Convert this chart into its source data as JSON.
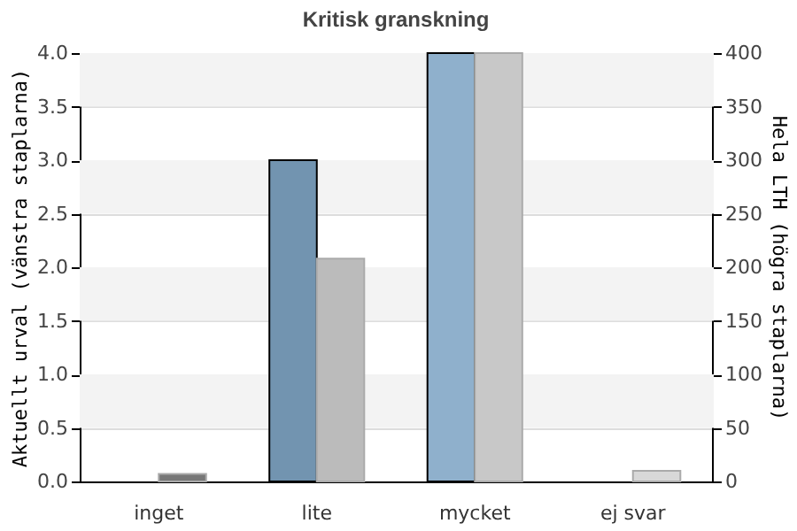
{
  "chart_data": {
    "type": "bar",
    "title": "Kritisk granskning",
    "ylabel": "Aktuellt urval (vänstra staplarna)",
    "y2label": "Hela LTH (högra staplarna)",
    "categories": [
      "inget",
      "lite",
      "mycket",
      "ej svar"
    ],
    "series": [
      {
        "values": [
          0,
          3,
          4,
          0
        ],
        "colors": [
          "#7294b0",
          "#7294b0",
          "#8fb0cc",
          "#7294b0"
        ]
      },
      {
        "values": [
          7,
          208,
          400,
          10
        ],
        "colors": [
          "#777777",
          "#bbbbbb",
          "#c8c8c8",
          "#d8d8d8"
        ],
        "axis": "y2"
      }
    ],
    "ylim": [
      0,
      4
    ],
    "yticks": [
      {
        "value": 0,
        "label": "0.0"
      },
      {
        "value": 0.5,
        "label": "0.5"
      },
      {
        "value": 1,
        "label": "1.0"
      },
      {
        "value": 1.5,
        "label": "1.5"
      },
      {
        "value": 2,
        "label": "2.0"
      },
      {
        "value": 2.5,
        "label": "2.5"
      },
      {
        "value": 3,
        "label": "3.0"
      },
      {
        "value": 3.5,
        "label": "3.5"
      },
      {
        "value": 4,
        "label": "4.0"
      }
    ],
    "y2lim": [
      0,
      400
    ],
    "y2ticks": [
      0,
      50,
      100,
      150,
      200,
      250,
      300,
      350,
      400
    ],
    "grid": true
  }
}
